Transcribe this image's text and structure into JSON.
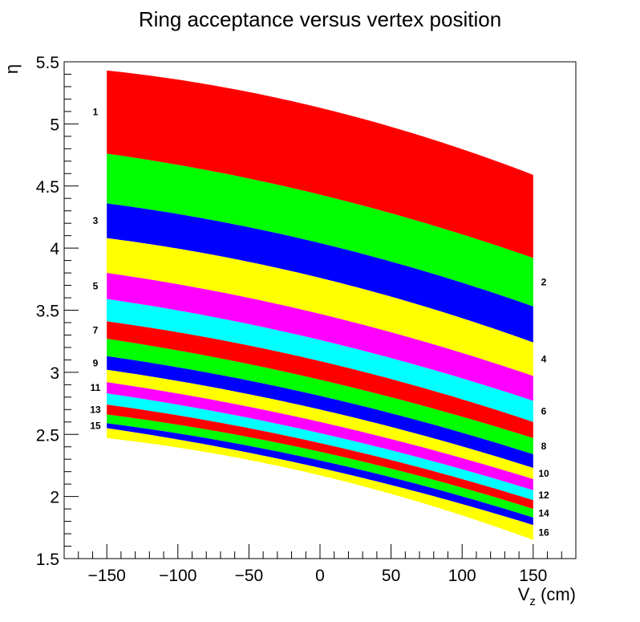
{
  "chart_data": {
    "type": "area",
    "title": "Ring acceptance versus vertex position",
    "xlabel": {
      "main": "V",
      "sub": "z",
      "unit": " (cm)"
    },
    "ylabel": "η",
    "xlim": [
      -180,
      180
    ],
    "ylim": [
      1.5,
      5.5
    ],
    "x_ticks": [
      -150,
      -100,
      -50,
      0,
      50,
      100,
      150
    ],
    "x_tick_labels": [
      "−150",
      "−100",
      "−50",
      "0",
      "50",
      "100",
      "150"
    ],
    "y_ticks": [
      1.5,
      2,
      2.5,
      3,
      3.5,
      4,
      4.5,
      5,
      5.5
    ],
    "y_tick_labels": [
      "1.5",
      "2",
      "2.5",
      "3",
      "3.5",
      "4",
      "4.5",
      "5",
      "5.5"
    ],
    "x_range": [
      -150,
      150
    ],
    "grid": false,
    "legend": "none",
    "boundaries": [
      {
        "left": 5.43,
        "mid": 5.13,
        "right": 4.59
      },
      {
        "left": 4.76,
        "mid": 4.43,
        "right": 3.92
      },
      {
        "left": 4.36,
        "mid": 4.04,
        "right": 3.53
      },
      {
        "left": 4.08,
        "mid": 3.76,
        "right": 3.24
      },
      {
        "left": 3.8,
        "mid": 3.47,
        "right": 2.97
      },
      {
        "left": 3.59,
        "mid": 3.26,
        "right": 2.77
      },
      {
        "left": 3.41,
        "mid": 3.09,
        "right": 2.6
      },
      {
        "left": 3.27,
        "mid": 2.94,
        "right": 2.47
      },
      {
        "left": 3.13,
        "mid": 2.81,
        "right": 2.34
      },
      {
        "left": 3.02,
        "mid": 2.7,
        "right": 2.23
      },
      {
        "left": 2.92,
        "mid": 2.6,
        "right": 2.14
      },
      {
        "left": 2.83,
        "mid": 2.51,
        "right": 2.05
      },
      {
        "left": 2.74,
        "mid": 2.43,
        "right": 1.97
      },
      {
        "left": 2.66,
        "mid": 2.36,
        "right": 1.9
      },
      {
        "left": 2.59,
        "mid": 2.29,
        "right": 1.83
      },
      {
        "left": 2.55,
        "mid": 2.23,
        "right": 1.77
      },
      {
        "left": 2.47,
        "mid": 2.17,
        "right": 1.65
      }
    ],
    "series": [
      {
        "name": "1",
        "color": "#ff0000",
        "label_side": "left"
      },
      {
        "name": "2",
        "color": "#00ff00",
        "label_side": "right"
      },
      {
        "name": "3",
        "color": "#0000ff",
        "label_side": "left"
      },
      {
        "name": "4",
        "color": "#ffff00",
        "label_side": "right"
      },
      {
        "name": "5",
        "color": "#ff00ff",
        "label_side": "left"
      },
      {
        "name": "6",
        "color": "#00ffff",
        "label_side": "right"
      },
      {
        "name": "7",
        "color": "#ff0000",
        "label_side": "left"
      },
      {
        "name": "8",
        "color": "#00ff00",
        "label_side": "right"
      },
      {
        "name": "9",
        "color": "#0000ff",
        "label_side": "left"
      },
      {
        "name": "10",
        "color": "#ffff00",
        "label_side": "right"
      },
      {
        "name": "11",
        "color": "#ff00ff",
        "label_side": "left"
      },
      {
        "name": "12",
        "color": "#00ffff",
        "label_side": "right"
      },
      {
        "name": "13",
        "color": "#ff0000",
        "label_side": "left"
      },
      {
        "name": "14",
        "color": "#00ff00",
        "label_side": "right"
      },
      {
        "name": "15",
        "color": "#0000ff",
        "label_side": "left"
      },
      {
        "name": "16",
        "color": "#ffff00",
        "label_side": "right"
      }
    ]
  }
}
